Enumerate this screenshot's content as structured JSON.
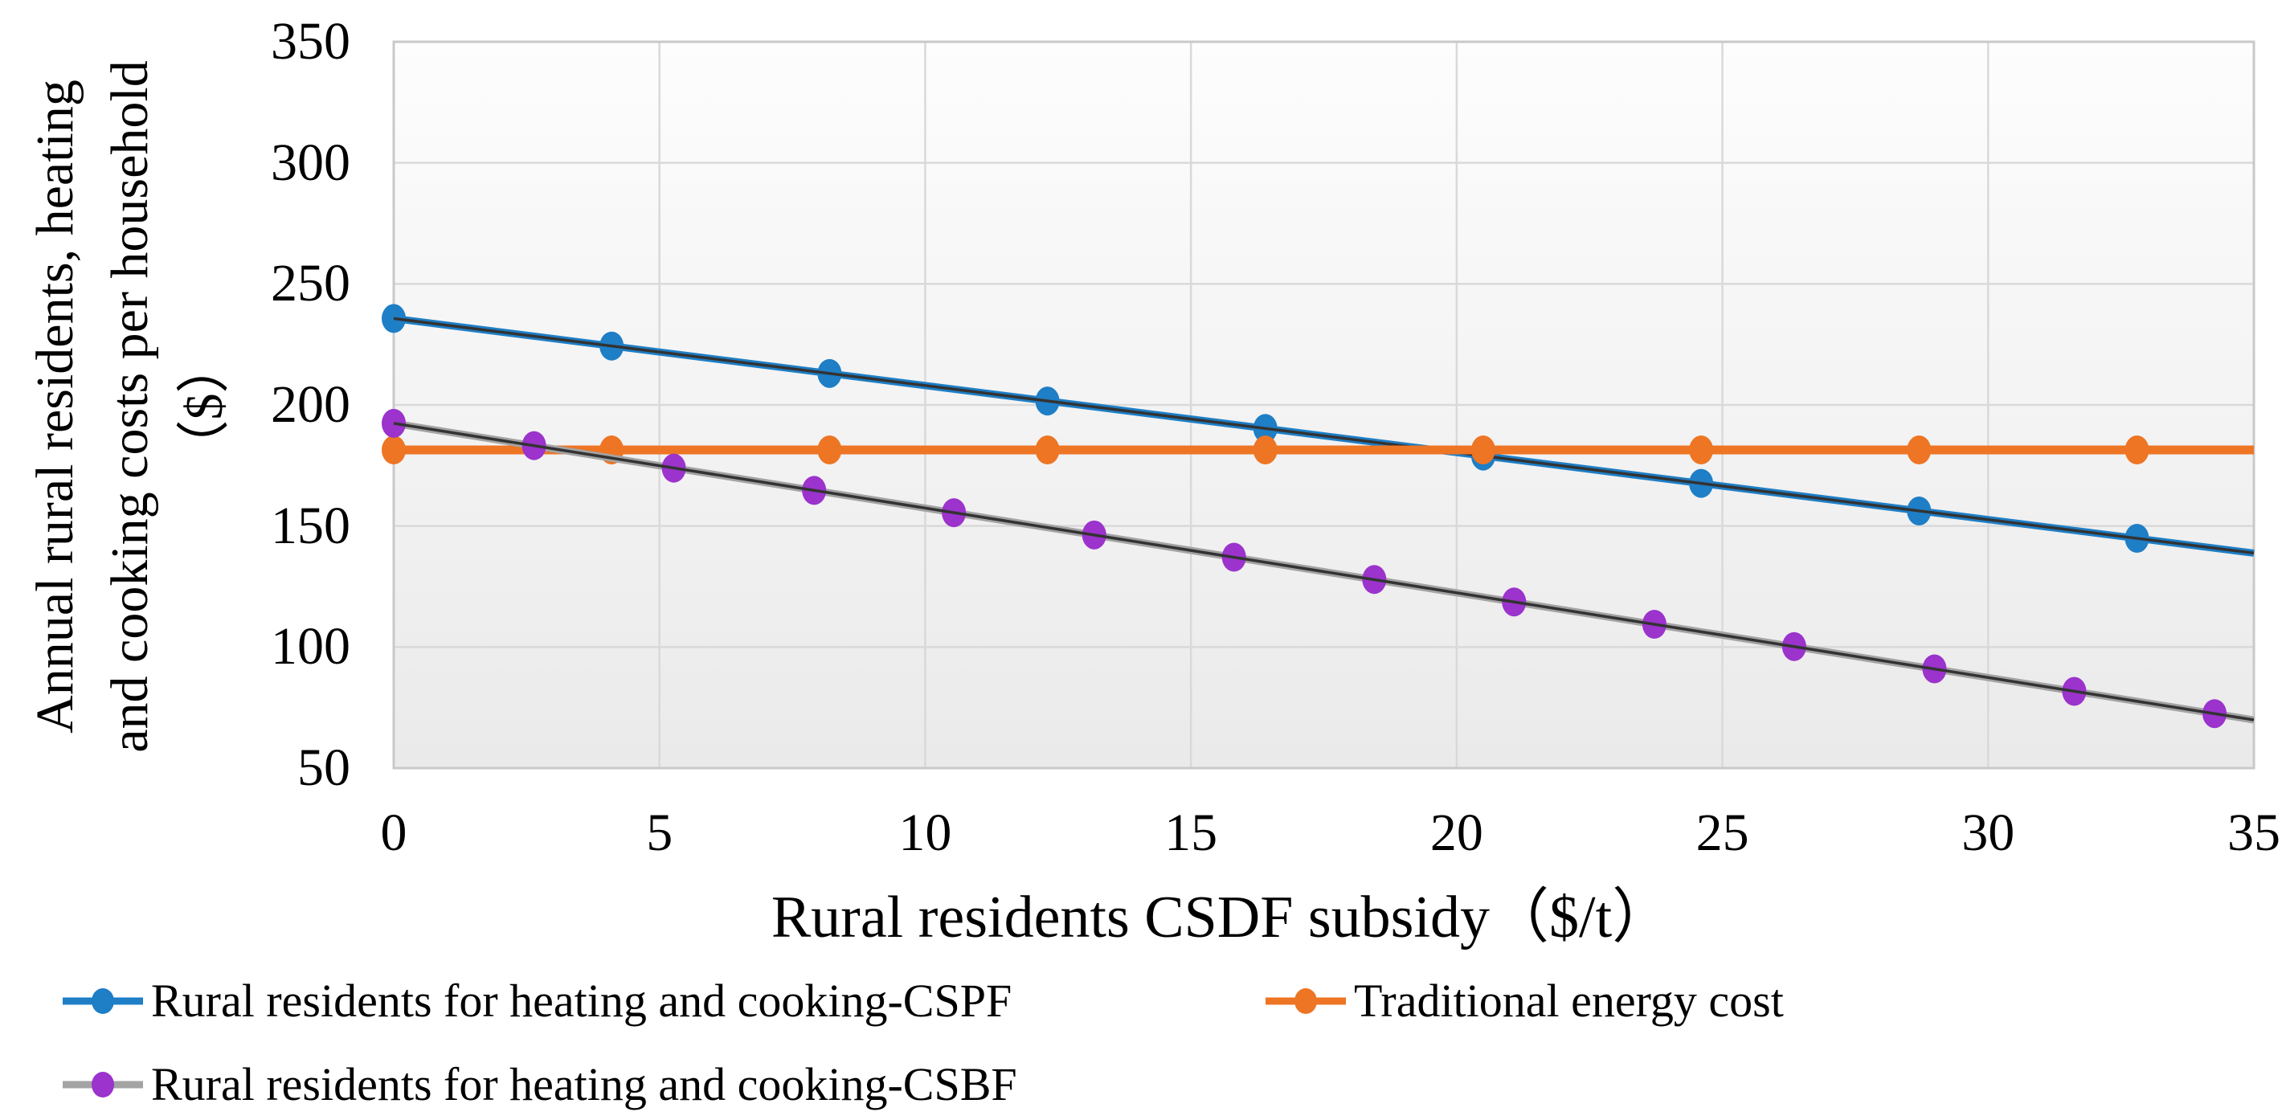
{
  "chart_data": {
    "type": "line",
    "title": "",
    "xlabel": "Rural residents CSDF subsidy（$/t）",
    "ylabel_lines": [
      "Annual rural residents, heating",
      "and cooking costs per household",
      "（$）"
    ],
    "xlim": [
      0,
      35
    ],
    "ylim": [
      50,
      350
    ],
    "x_ticks": [
      0,
      5,
      10,
      15,
      20,
      25,
      30,
      35
    ],
    "y_ticks": [
      350,
      300,
      250,
      200,
      150,
      100,
      50
    ],
    "grid": true,
    "legend_position": "bottom",
    "colors": {
      "plot_bg_top": "#fdfdfd",
      "plot_bg_bottom": "#eaeaea",
      "gridline": "#d9d9d9",
      "plot_border": "#c9c9c9",
      "trendline": "#333333"
    },
    "series": [
      {
        "name": "Rural residents for heating and cooking-CSPF",
        "line_color": "#1E7EC6",
        "marker_color": "#1E7EC6",
        "has_trendline": true,
        "x": [
          0,
          4.1,
          8.2,
          12.3,
          16.4,
          20.5,
          24.6,
          28.7,
          32.8
        ],
        "y": [
          235.7,
          224.3,
          213.0,
          201.6,
          190.3,
          178.9,
          167.6,
          156.2,
          144.9
        ],
        "line_x": [
          0,
          35
        ],
        "line_y": [
          235.7,
          138.8
        ]
      },
      {
        "name": "Traditional energy cost",
        "line_color": "#ED7524",
        "marker_color": "#ED7524",
        "has_trendline": false,
        "x": [
          0,
          4.1,
          8.2,
          12.3,
          16.4,
          20.5,
          24.6,
          28.7,
          32.8
        ],
        "y": [
          181.4,
          181.4,
          181.4,
          181.4,
          181.4,
          181.4,
          181.4,
          181.4,
          181.4
        ],
        "line_x": [
          0,
          35
        ],
        "line_y": [
          181.4,
          181.4
        ]
      },
      {
        "name": "Rural residents for heating and cooking-CSBF",
        "line_color": "#A3A3A3",
        "marker_color": "#9B33CC",
        "has_trendline": true,
        "x": [
          0,
          2.64,
          5.27,
          7.91,
          10.54,
          13.18,
          15.81,
          18.45,
          21.08,
          23.72,
          26.35,
          28.99,
          31.62,
          34.26
        ],
        "y": [
          192.4,
          183.2,
          173.9,
          164.7,
          155.5,
          146.3,
          137.1,
          127.9,
          118.6,
          109.4,
          100.2,
          91.0,
          81.7,
          72.5
        ],
        "line_x": [
          0,
          35
        ],
        "line_y": [
          192.4,
          69.9
        ]
      }
    ]
  }
}
